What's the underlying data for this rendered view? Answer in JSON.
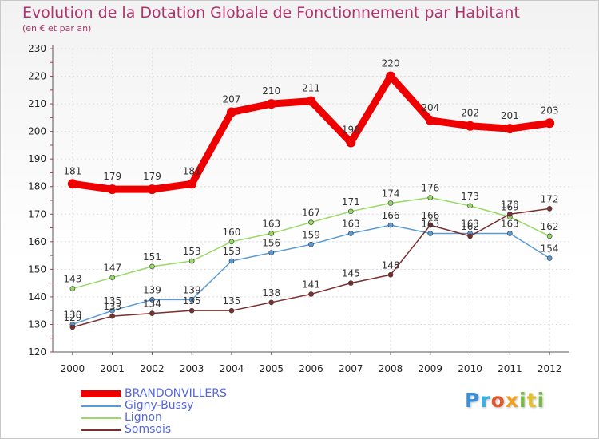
{
  "chart_data": {
    "type": "line",
    "title": "Evolution de la Dotation Globale de Fonctionnement par Habitant",
    "subtitle": "(en € et par an)",
    "categories": [
      "2000",
      "2001",
      "2002",
      "2003",
      "2004",
      "2005",
      "2006",
      "2007",
      "2008",
      "2009",
      "2010",
      "2011",
      "2012"
    ],
    "ylim": [
      120,
      230
    ],
    "yticks": [
      120,
      130,
      140,
      150,
      160,
      170,
      180,
      190,
      200,
      210,
      220,
      230
    ],
    "grid": true,
    "legend_position": "bottom-left",
    "series": [
      {
        "name": "BRANDONVILLERS",
        "color": "#ee0000",
        "values": [
          181,
          179,
          179,
          181,
          207,
          210,
          211,
          196,
          220,
          204,
          202,
          201,
          203
        ]
      },
      {
        "name": "Gigny-Bussy",
        "color": "#5a9bd5",
        "values": [
          130,
          135,
          139,
          139,
          153,
          156,
          159,
          163,
          166,
          163,
          163,
          163,
          154
        ]
      },
      {
        "name": "Lignon",
        "color": "#99d966",
        "values": [
          143,
          147,
          151,
          153,
          160,
          163,
          167,
          171,
          174,
          176,
          173,
          169,
          162
        ]
      },
      {
        "name": "Somsois",
        "color": "#7a2e2e",
        "values": [
          129,
          133,
          134,
          135,
          135,
          138,
          141,
          145,
          148,
          166,
          162,
          170,
          172
        ]
      }
    ]
  },
  "logo": {
    "letters": [
      "P",
      "r",
      "o",
      "x",
      "i",
      "t",
      "i"
    ]
  }
}
